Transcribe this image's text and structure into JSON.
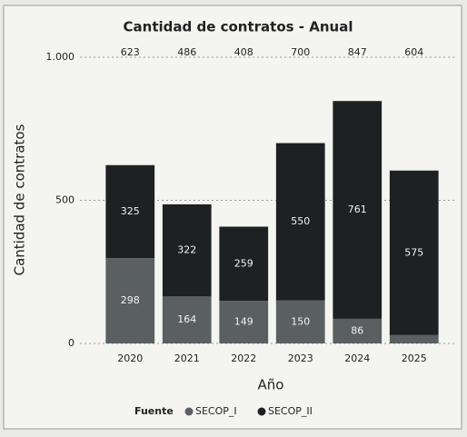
{
  "chart_data": {
    "type": "stacked_bar",
    "title": "Cantidad de contratos - Anual",
    "x_label": "Año",
    "y_label": "Cantidad de contratos",
    "legend_title": "Fuente",
    "legend": "bottom",
    "categories": [
      "2020",
      "2021",
      "2022",
      "2023",
      "2024",
      "2025"
    ],
    "series": [
      {
        "name": "SECOP_I",
        "color": "#5a5f61",
        "values": [
          298,
          164,
          149,
          150,
          86,
          29
        ]
      },
      {
        "name": "SECOP_II",
        "color": "#1e2123",
        "values": [
          325,
          322,
          259,
          550,
          761,
          575
        ]
      }
    ],
    "totals": [
      623,
      486,
      408,
      700,
      847,
      604
    ],
    "ylim": [
      0,
      1000
    ],
    "yticks": [
      0,
      500,
      {
        "value": 1000,
        "label": "1.000"
      }
    ],
    "grid": true
  }
}
